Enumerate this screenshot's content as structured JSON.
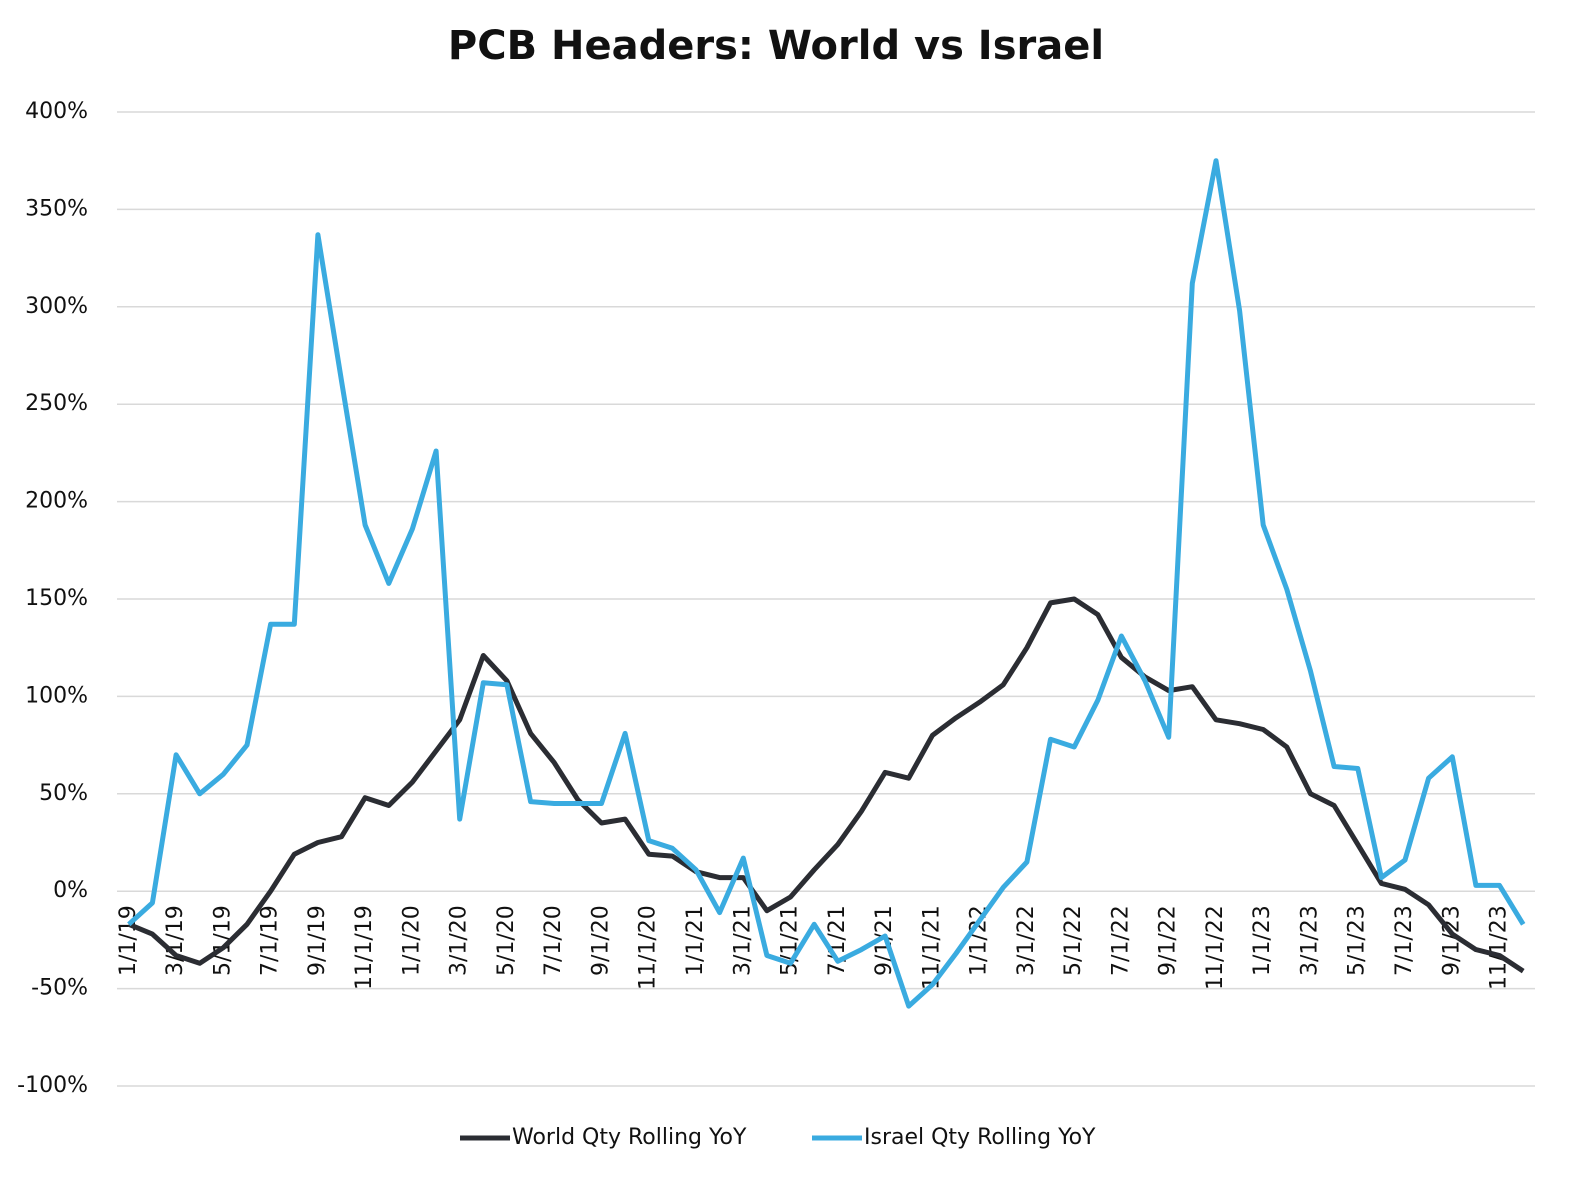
{
  "chart_data": {
    "type": "line",
    "title": "PCB Headers: World vs Israel",
    "categories": [
      "1/1/19",
      null,
      "3/1/19",
      null,
      "5/1/19",
      null,
      "7/1/19",
      null,
      "9/1/19",
      null,
      "11/1/19",
      null,
      "1/1/20",
      null,
      "3/1/20",
      null,
      "5/1/20",
      null,
      "7/1/20",
      null,
      "9/1/20",
      null,
      "11/1/20",
      null,
      "1/1/21",
      null,
      "3/1/21",
      null,
      "5/1/21",
      null,
      "7/1/21",
      null,
      "9/1/21",
      null,
      "11/1/21",
      null,
      "1/1/22",
      null,
      "3/1/22",
      null,
      "5/1/22",
      null,
      "7/1/22",
      null,
      "9/1/22",
      null,
      "11/1/22",
      null,
      "1/1/23",
      null,
      "3/1/23",
      null,
      "5/1/23",
      null,
      "7/1/23",
      null,
      "9/1/23",
      null,
      "11/1/23",
      null
    ],
    "series": [
      {
        "name": "World Qty Rolling YoY",
        "color": "#2b2d33",
        "values": [
          -17,
          -22,
          -33,
          -37,
          -29,
          -17,
          0,
          19,
          25,
          28,
          48,
          44,
          56,
          72,
          88,
          121,
          108,
          81,
          66,
          47,
          35,
          37,
          19,
          18,
          10,
          7,
          7,
          -10,
          -3,
          11,
          24,
          41,
          61,
          58,
          80,
          89,
          97,
          106,
          125,
          148,
          150,
          142,
          120,
          110,
          103,
          105,
          88,
          86,
          83,
          74,
          50,
          44,
          24,
          4,
          1,
          -7,
          -22,
          -30,
          -33,
          -41
        ]
      },
      {
        "name": "Israel Qty Rolling YoY",
        "color": "#3aabe0",
        "values": [
          -17,
          -6,
          70,
          50,
          60,
          75,
          137,
          137,
          337,
          262,
          188,
          158,
          186,
          226,
          37,
          107,
          106,
          46,
          45,
          45,
          45,
          81,
          26,
          22,
          11,
          -11,
          17,
          -33,
          -37,
          -17,
          -36,
          -30,
          -23,
          -59,
          -48,
          -32,
          -15,
          2,
          15,
          78,
          74,
          98,
          131,
          108,
          79,
          312,
          375,
          298,
          188,
          155,
          113,
          64,
          63,
          7,
          16,
          58,
          69,
          3,
          3,
          -17
        ]
      }
    ],
    "ylim": [
      -100,
      400
    ],
    "yticks": [
      {
        "value": -100,
        "label": "-100%"
      },
      {
        "value": -50,
        "label": "-50%"
      },
      {
        "value": 0,
        "label": "0%"
      },
      {
        "value": 50,
        "label": "50%"
      },
      {
        "value": 100,
        "label": "100%"
      },
      {
        "value": 150,
        "label": "150%"
      },
      {
        "value": 200,
        "label": "200%"
      },
      {
        "value": 250,
        "label": "250%"
      },
      {
        "value": 300,
        "label": "300%"
      },
      {
        "value": 350,
        "label": "350%"
      },
      {
        "value": 400,
        "label": "400%"
      }
    ],
    "grid": true,
    "legend": "bottom"
  }
}
